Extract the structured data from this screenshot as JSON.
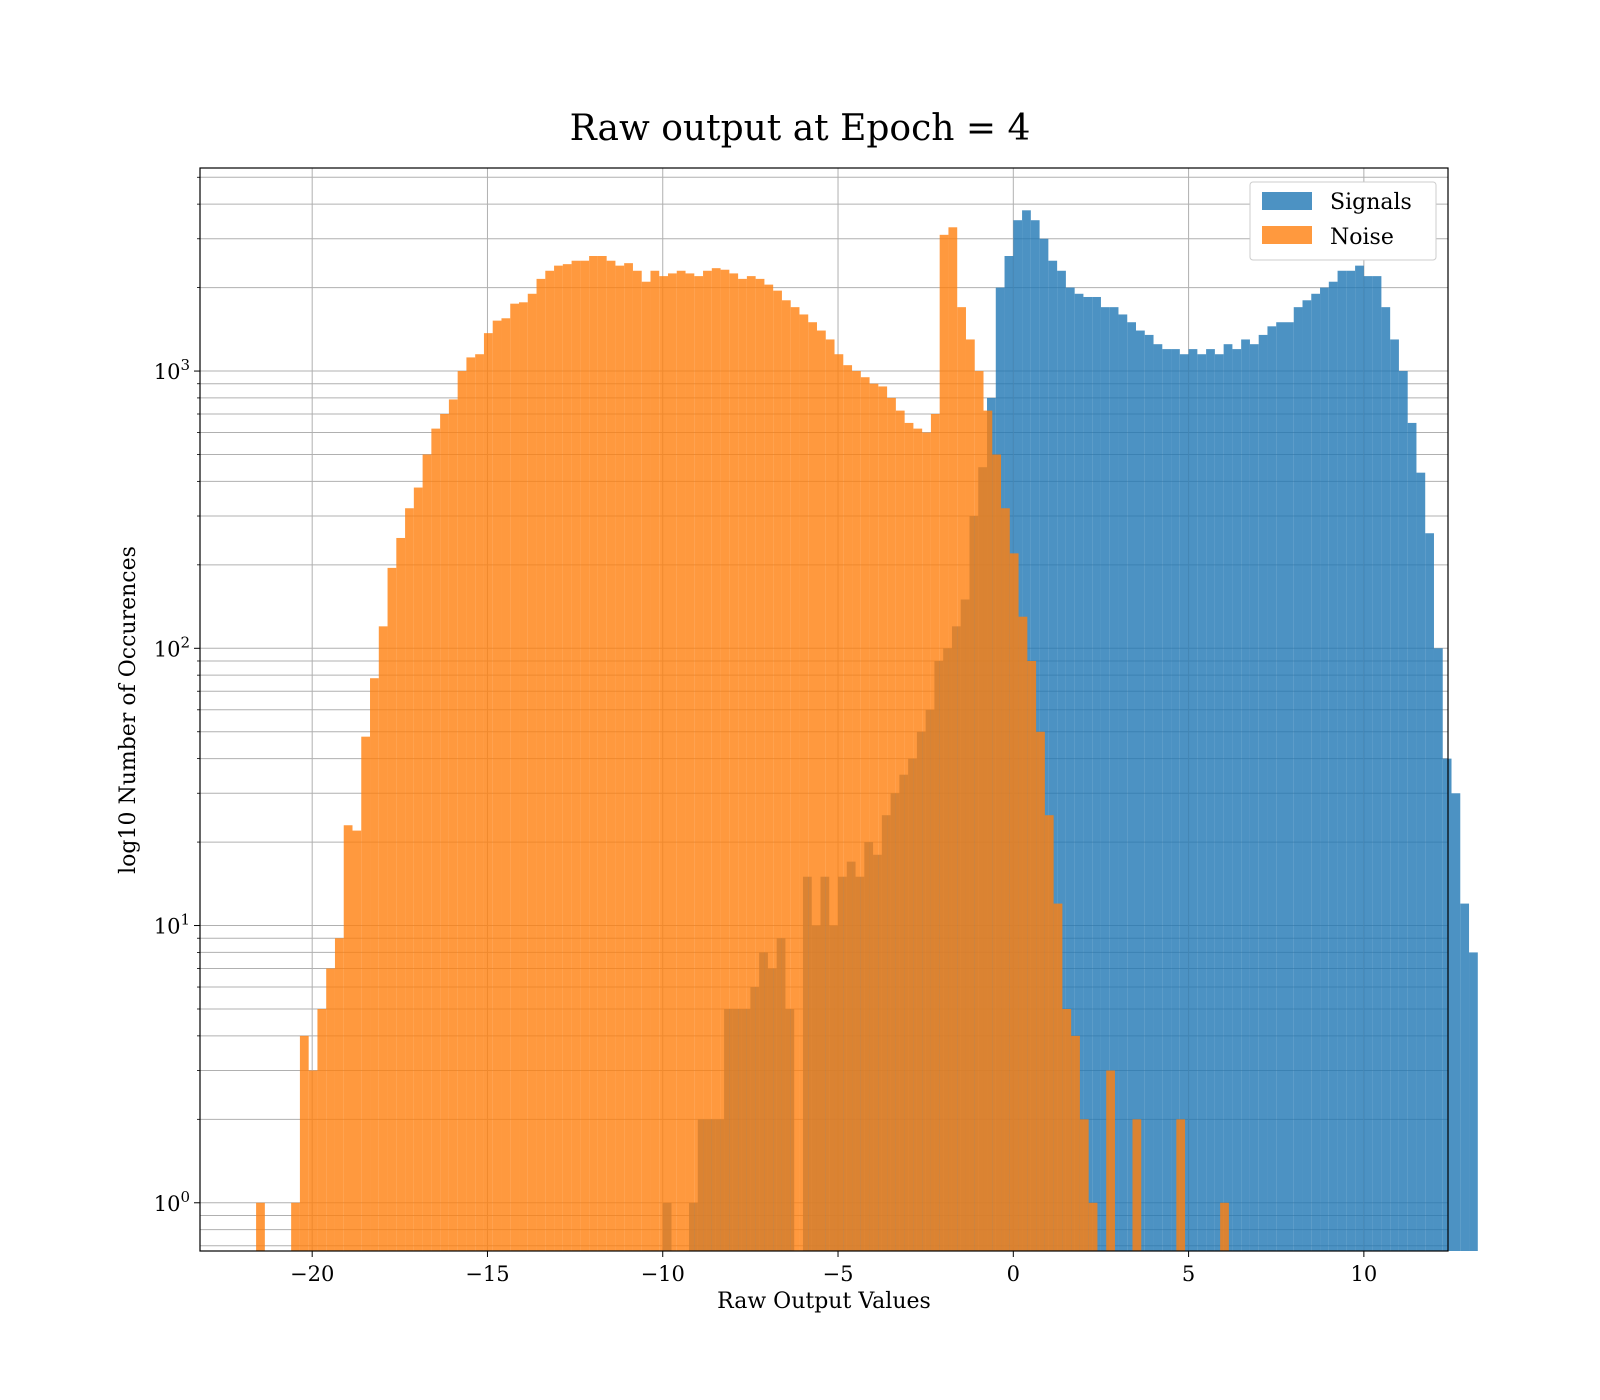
{
  "chart_data": {
    "type": "histogram",
    "title": "Raw output at Epoch = 4",
    "xlabel": "Raw Output Values",
    "ylabel": "log10 Number of Occurences",
    "xlim": [
      -23.2,
      12.4
    ],
    "ylim": [
      0.67,
      5400
    ],
    "yscale": "log",
    "x_ticks": [
      -20,
      -15,
      -10,
      -5,
      0,
      5,
      10
    ],
    "x_tick_labels": [
      "−20",
      "−15",
      "−10",
      "−5",
      "0",
      "5",
      "10"
    ],
    "y_ticks": [
      1,
      10,
      100,
      1000
    ],
    "y_tick_labels": [
      {
        "base": "10",
        "exp": "0"
      },
      {
        "base": "10",
        "exp": "1"
      },
      {
        "base": "10",
        "exp": "2"
      },
      {
        "base": "10",
        "exp": "3"
      }
    ],
    "grid": true,
    "legend_position": "top-right",
    "colors": {
      "signals": "#1f77b4",
      "noise": "#ff7f0e"
    },
    "series": [
      {
        "name": "Signals",
        "color": "#1f77b4",
        "bin_start": -10.0,
        "bin_width": 0.25,
        "values": [
          1,
          0,
          0,
          1,
          2,
          2,
          2,
          5,
          5,
          5,
          6,
          8,
          7,
          9,
          5,
          0,
          15,
          10,
          15,
          10,
          15,
          17,
          15,
          20,
          18,
          25,
          30,
          35,
          40,
          50,
          60,
          90,
          100,
          120,
          150,
          300,
          450,
          800,
          2000,
          2600,
          3500,
          3800,
          3500,
          3000,
          2500,
          2300,
          2000,
          1900,
          1850,
          1850,
          1700,
          1700,
          1600,
          1500,
          1400,
          1350,
          1250,
          1200,
          1200,
          1150,
          1200,
          1150,
          1200,
          1150,
          1250,
          1200,
          1300,
          1250,
          1350,
          1450,
          1500,
          1500,
          1700,
          1800,
          1900,
          2000,
          2100,
          2300,
          2300,
          2400,
          2200,
          2200,
          1700,
          1300,
          1000,
          650,
          430,
          260,
          100,
          40,
          30,
          12,
          8
        ],
        "opacity": 0.8
      },
      {
        "name": "Noise",
        "color": "#ff7f0e",
        "bin_start": -21.6,
        "bin_width": 0.25,
        "values": [
          1,
          0,
          0,
          0,
          1,
          4,
          3,
          5,
          7,
          9,
          23,
          22,
          48,
          78,
          120,
          195,
          250,
          320,
          380,
          500,
          620,
          700,
          790,
          1000,
          1120,
          1150,
          1370,
          1520,
          1550,
          1750,
          1770,
          1900,
          2150,
          2300,
          2400,
          2430,
          2500,
          2500,
          2600,
          2600,
          2500,
          2400,
          2450,
          2300,
          2100,
          2300,
          2200,
          2250,
          2300,
          2250,
          2200,
          2300,
          2350,
          2320,
          2250,
          2150,
          2200,
          2150,
          2050,
          1950,
          1800,
          1700,
          1600,
          1500,
          1400,
          1300,
          1150,
          1050,
          1000,
          950,
          900,
          880,
          800,
          720,
          650,
          620,
          600,
          700,
          3100,
          3300,
          1700,
          1300,
          1000,
          720,
          500,
          320,
          220,
          130,
          90,
          50,
          25,
          12,
          5,
          4,
          2,
          1,
          0,
          3,
          0,
          0,
          2,
          0,
          0,
          0,
          0,
          2,
          0,
          0,
          0,
          0,
          1
        ],
        "opacity": 0.8
      }
    ],
    "noise_overlay_note": "",
    "overlap_region": {
      "series": "Noise",
      "bin_start": -9.6,
      "bin_width": 0.25,
      "values": [
        1,
        0,
        1,
        2,
        1,
        2,
        2,
        5,
        5,
        5,
        5,
        6,
        8,
        8,
        9,
        5,
        2,
        15,
        10,
        15,
        10,
        15,
        17,
        15,
        20,
        18,
        25,
        30,
        35,
        40,
        50,
        60,
        90,
        100,
        150,
        300,
        3300,
        1700,
        1300,
        1000,
        720,
        500,
        320,
        220,
        130,
        90,
        50,
        25,
        12,
        5,
        8,
        2,
        1,
        2,
        0,
        0,
        0,
        1,
        1,
        0,
        2,
        0,
        0,
        2
      ]
    },
    "legend": [
      {
        "label": "Signals",
        "color": "#1f77b4"
      },
      {
        "label": "Noise",
        "color": "#ff7f0e"
      }
    ]
  }
}
